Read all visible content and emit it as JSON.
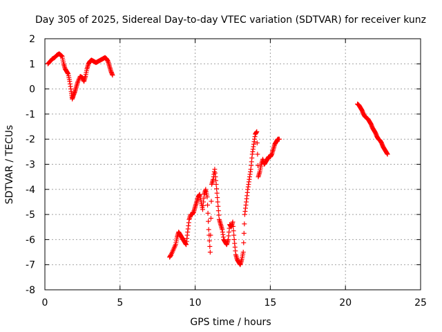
{
  "chart_data": {
    "type": "scatter",
    "title": "Day 305 of 2025, Sidereal Day-to-day VTEC variation (SDTVAR) for receiver kunz",
    "xlabel": "GPS time / hours",
    "ylabel": "SDTVAR / TECUs",
    "xlim": [
      0,
      25
    ],
    "ylim": [
      -8,
      2
    ],
    "xticks": [
      0,
      5,
      10,
      15,
      20,
      25
    ],
    "yticks": [
      2,
      1,
      0,
      -1,
      -2,
      -3,
      -4,
      -5,
      -6,
      -7,
      -8
    ],
    "grid": true,
    "marker": "plus",
    "color": "#ff0000",
    "series": [
      {
        "segments": [
          {
            "x": [
              0.2,
              0.35,
              0.5,
              0.65,
              0.8,
              0.95,
              1.05,
              1.15,
              1.25,
              1.35,
              1.45,
              1.55,
              1.65,
              1.75,
              1.82,
              1.9,
              2.0,
              2.1,
              2.2,
              2.35,
              2.5,
              2.6,
              2.7,
              2.8,
              2.9,
              3.0,
              3.1,
              3.25,
              3.4,
              3.55,
              3.7,
              3.85,
              4.0,
              4.1,
              4.2,
              4.3,
              4.4,
              4.5
            ],
            "y": [
              1.0,
              1.1,
              1.2,
              1.25,
              1.35,
              1.4,
              1.35,
              1.3,
              1.0,
              0.8,
              0.7,
              0.6,
              0.3,
              -0.1,
              -0.4,
              -0.25,
              -0.1,
              0.1,
              0.3,
              0.5,
              0.45,
              0.3,
              0.5,
              0.8,
              1.0,
              1.1,
              1.15,
              1.1,
              1.05,
              1.1,
              1.15,
              1.2,
              1.25,
              1.2,
              1.1,
              0.9,
              0.7,
              0.55
            ]
          },
          {
            "x": [
              8.3,
              8.4,
              8.55,
              8.7,
              8.8,
              8.9,
              9.0,
              9.1,
              9.2,
              9.3,
              9.4,
              9.5,
              9.6,
              9.7,
              9.8,
              9.9,
              10.0,
              10.1,
              10.2,
              10.3,
              10.4,
              10.5,
              10.6,
              10.7,
              10.8,
              10.9,
              11.0,
              11.1,
              11.2,
              11.3,
              11.4,
              11.5,
              11.6,
              11.7,
              11.8,
              11.9,
              12.0,
              12.1,
              12.2,
              12.3,
              12.4,
              12.5,
              12.6,
              12.7,
              12.8,
              12.9,
              13.0,
              13.1,
              13.2,
              13.3,
              13.4,
              13.5,
              13.6,
              13.7,
              13.8,
              13.9,
              14.0,
              14.1,
              14.2,
              14.3,
              14.4,
              14.5,
              14.6,
              14.7,
              14.8,
              14.9,
              15.0,
              15.1,
              15.2,
              15.3,
              15.4,
              15.5,
              15.6
            ],
            "y": [
              -6.7,
              -6.6,
              -6.4,
              -6.2,
              -5.9,
              -5.7,
              -5.8,
              -5.9,
              -6.0,
              -6.1,
              -6.2,
              -5.7,
              -5.2,
              -5.0,
              -5.0,
              -4.9,
              -4.7,
              -4.5,
              -4.3,
              -4.2,
              -4.5,
              -4.8,
              -4.2,
              -4.0,
              -4.3,
              -5.6,
              -6.5,
              -3.8,
              -3.6,
              -3.2,
              -3.8,
              -4.5,
              -5.2,
              -5.4,
              -5.6,
              -6.0,
              -6.1,
              -6.2,
              -6.0,
              -5.4,
              -5.5,
              -5.3,
              -6.0,
              -6.6,
              -6.8,
              -6.9,
              -7.0,
              -6.8,
              -6.5,
              -5.0,
              -4.5,
              -4.0,
              -3.6,
              -3.2,
              -2.6,
              -2.2,
              -1.8,
              -1.7,
              -3.5,
              -3.3,
              -3.0,
              -2.8,
              -3.0,
              -2.9,
              -2.8,
              -2.7,
              -2.7,
              -2.6,
              -2.4,
              -2.2,
              -2.1,
              -2.0,
              -2.0
            ]
          },
          {
            "x": [
              20.8,
              20.9,
              21.0,
              21.1,
              21.2,
              21.3,
              21.4,
              21.5,
              21.6,
              21.7,
              21.8,
              21.9,
              22.0,
              22.1,
              22.2,
              22.3,
              22.4,
              22.5,
              22.6,
              22.7,
              22.8
            ],
            "y": [
              -0.6,
              -0.65,
              -0.75,
              -0.85,
              -1.0,
              -1.1,
              -1.15,
              -1.2,
              -1.3,
              -1.4,
              -1.55,
              -1.65,
              -1.75,
              -1.9,
              -2.0,
              -2.05,
              -2.15,
              -2.3,
              -2.4,
              -2.5,
              -2.6
            ]
          }
        ]
      }
    ]
  }
}
